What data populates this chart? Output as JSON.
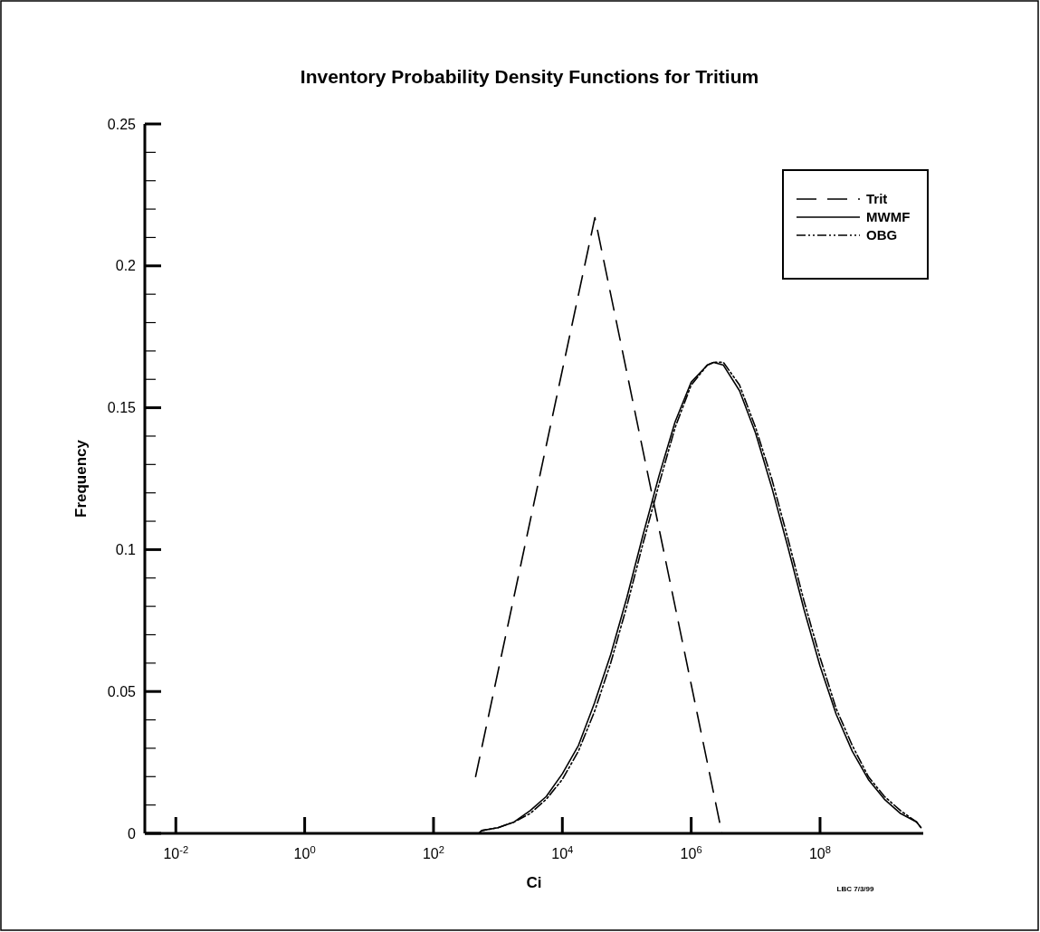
{
  "chart_data": {
    "type": "line",
    "title": "Inventory Probability Density Functions for Tritium",
    "xlabel": "Ci",
    "ylabel": "Frequency",
    "log": "x",
    "xlim": [
      0.0033,
      4000000000
    ],
    "ylim": [
      0,
      0.25
    ],
    "xticks": [
      {
        "value": 0.01,
        "label": "10$^{-2}$"
      },
      {
        "value": 1,
        "label": "10$^{0}$"
      },
      {
        "value": 100,
        "label": "10$^{2}$"
      },
      {
        "value": 10000,
        "label": "10$^{4}$"
      },
      {
        "value": 1000000,
        "label": "10$^{6}$"
      },
      {
        "value": 100000000,
        "label": "10$^{8}$"
      }
    ],
    "yticks": [
      0,
      {
        "value": 0.01,
        "label": null
      },
      {
        "value": 0.02,
        "label": null
      },
      {
        "value": 0.03,
        "label": null
      },
      {
        "value": 0.04,
        "label": null
      },
      0.05,
      {
        "value": 0.06,
        "label": null
      },
      {
        "value": 0.07,
        "label": null
      },
      {
        "value": 0.08,
        "label": null
      },
      {
        "value": 0.09,
        "label": null
      },
      0.1,
      {
        "value": 0.11,
        "label": null
      },
      {
        "value": 0.12,
        "label": null
      },
      {
        "value": 0.13,
        "label": null
      },
      {
        "value": 0.14,
        "label": null
      },
      0.15,
      {
        "value": 0.16,
        "label": null
      },
      {
        "value": 0.17,
        "label": null
      },
      {
        "value": 0.18,
        "label": null
      },
      {
        "value": 0.19,
        "label": null
      },
      0.2,
      {
        "value": 0.21,
        "label": null
      },
      {
        "value": 0.22,
        "label": null
      },
      {
        "value": 0.23,
        "label": null
      },
      {
        "value": 0.24,
        "label": null
      },
      0.25
    ],
    "grid": false,
    "legend": "top right",
    "marker": "none",
    "series": [
      {
        "name": "Trit",
        "color": "#000000",
        "line_style": "dashed",
        "x": [
          450,
          32000,
          3000000
        ],
        "values": [
          0.02,
          0.217,
          0
        ]
      },
      {
        "name": "MWMF",
        "color": "#000000",
        "line_style": "solid",
        "x": [
          500,
          562,
          1000,
          1778,
          3162,
          5623,
          10000,
          17783,
          31623,
          56234,
          100000,
          177828,
          316228,
          562341,
          1000000,
          1778279,
          2238721,
          3162278,
          5623413,
          10000000,
          17782794,
          31622777,
          56234133,
          100000000,
          177827941,
          316227766,
          562341325,
          1000000000,
          1778279410,
          3162277660,
          3700000000
        ],
        "values": [
          0,
          0.001,
          0.002,
          0.004,
          0.008,
          0.013,
          0.021,
          0.031,
          0.046,
          0.063,
          0.083,
          0.105,
          0.126,
          0.145,
          0.159,
          0.165,
          0.166,
          0.165,
          0.156,
          0.141,
          0.122,
          0.101,
          0.079,
          0.059,
          0.042,
          0.029,
          0.019,
          0.012,
          0.007,
          0.004,
          0.002
        ]
      },
      {
        "name": "OBG",
        "color": "#000000",
        "line_style": "dotted",
        "x": [
          500,
          562,
          1000,
          1778,
          3162,
          5623,
          10000,
          17783,
          31623,
          56234,
          100000,
          177828,
          316228,
          562341,
          1000000,
          1778279,
          2238721,
          3162278,
          5623413,
          10000000,
          17782794,
          31622777,
          56234133,
          100000000,
          177827941,
          316227766,
          562341325,
          1000000000,
          1778279410,
          3162277660,
          3700000000
        ],
        "values": [
          0,
          0.001,
          0.002,
          0.004,
          0.007,
          0.012,
          0.019,
          0.029,
          0.043,
          0.06,
          0.08,
          0.102,
          0.123,
          0.143,
          0.158,
          0.165,
          0.166,
          0.166,
          0.158,
          0.143,
          0.125,
          0.104,
          0.082,
          0.062,
          0.044,
          0.031,
          0.02,
          0.013,
          0.008,
          0.004,
          0.002
        ]
      }
    ],
    "annotations": [
      "LBC 7/3/99"
    ]
  }
}
